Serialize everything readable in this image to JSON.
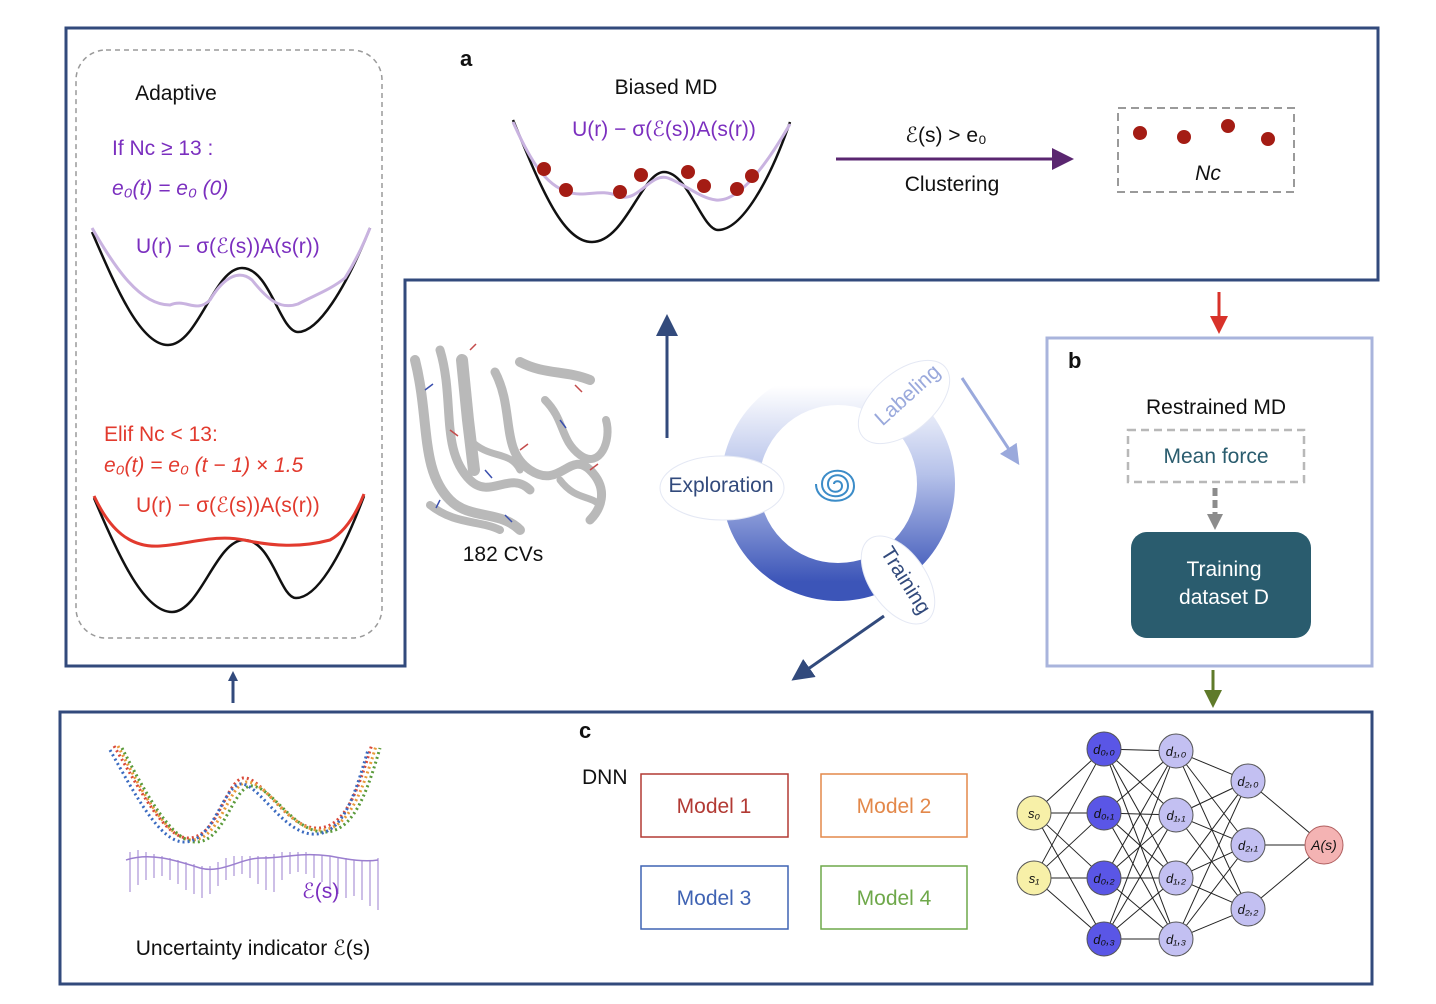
{
  "panels": {
    "a": {
      "label": "a",
      "title": "Biased MD",
      "formula": "U(r) − σ(ℰ(s))A(s(r))",
      "arrow_top": "ℰ(s) > e₀",
      "arrow_bottom": "Clustering",
      "nc_label": "Nᴄ"
    },
    "adaptive": {
      "title": "Adaptive",
      "if_line": "If Nᴄ ≥ 13 :",
      "if_rule": "e₀(t) = e₀ (0)",
      "if_formula": "U(r) − σ(ℰ(s))A(s(r))",
      "elif_line": "Elif Nᴄ < 13:",
      "elif_rule": "e₀(t) = e₀ (t − 1) × 1.5",
      "elif_formula": "U(r) − σ(ℰ(s))A(s(r))"
    },
    "b": {
      "label": "b",
      "title": "Restrained MD",
      "mean_force": "Mean force",
      "dataset_line1": "Training",
      "dataset_line2": "dataset D"
    },
    "c": {
      "label": "c",
      "dnn": "DNN",
      "models": [
        "Model 1",
        "Model 2",
        "Model 3",
        "Model 4"
      ],
      "uncertainty_label": "ℰ(s)",
      "uncertainty_caption": "Uncertainty indicator ℰ(s)",
      "network": {
        "inputs": [
          "s₀",
          "s₁"
        ],
        "layer0": [
          "d₀,₀",
          "d₀,₁",
          "d₀,₂",
          "d₀,₃"
        ],
        "layer1": [
          "d₁,₀",
          "d₁,₁",
          "d₁,₂",
          "d₁,₃"
        ],
        "layer2": [
          "d₂,₀",
          "d₂,₁",
          "d₂,₂"
        ],
        "output": "A(s)"
      }
    }
  },
  "center": {
    "cvs": "182 CVs",
    "cycle": [
      "Exploration",
      "Labeling",
      "Training"
    ]
  },
  "colors": {
    "navy": "#324a7c",
    "purple": "#7b2fbf",
    "red": "#e23a2e",
    "dark_red": "#a41c14",
    "teal": "#2a5c6e",
    "light_blue_frame": "#a9b4dc",
    "model1": "#b23a34",
    "model2": "#e3884a",
    "model3": "#3f63b3",
    "model4": "#6ea84a",
    "node_dark": "#5a56e6",
    "node_light": "#c3c0f2",
    "node_input": "#f7f0a8",
    "node_output": "#f4b3b3"
  }
}
